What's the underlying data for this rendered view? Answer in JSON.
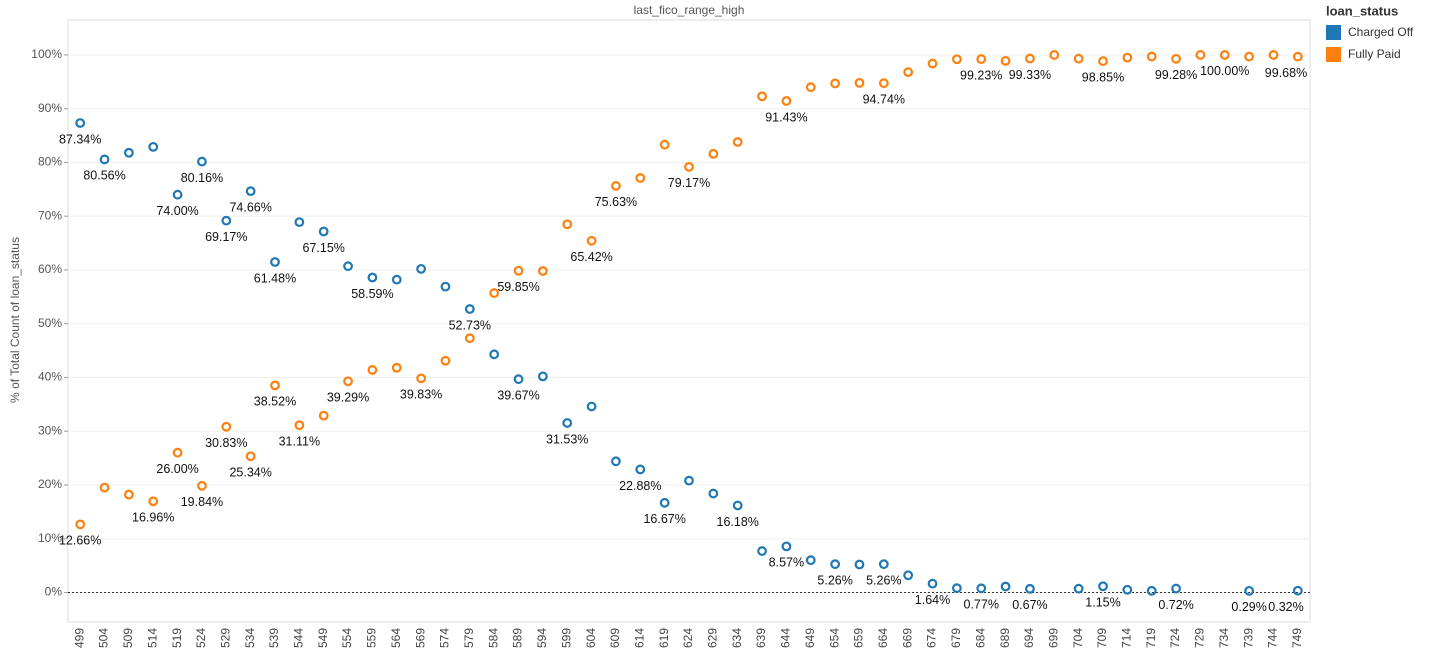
{
  "chart_data": {
    "type": "scatter",
    "title": "last_fico_range_high",
    "y_label": "% of Total Count of loan_status",
    "legend_title": "loan_status",
    "legend_position": "right",
    "grid": true,
    "zero_line": true,
    "categories": [
      "499",
      "504",
      "509",
      "514",
      "519",
      "524",
      "529",
      "534",
      "539",
      "544",
      "549",
      "554",
      "559",
      "564",
      "569",
      "574",
      "579",
      "584",
      "589",
      "594",
      "599",
      "604",
      "609",
      "614",
      "619",
      "624",
      "629",
      "634",
      "639",
      "644",
      "649",
      "654",
      "659",
      "664",
      "669",
      "674",
      "679",
      "684",
      "689",
      "694",
      "699",
      "704",
      "709",
      "714",
      "719",
      "724",
      "729",
      "734",
      "739",
      "744",
      "749"
    ],
    "ylim": [
      -5.5,
      106.5
    ],
    "yticks": [
      {
        "value": 0,
        "label": "0%"
      },
      {
        "value": 10,
        "label": "10%"
      },
      {
        "value": 20,
        "label": "20%"
      },
      {
        "value": 30,
        "label": "30%"
      },
      {
        "value": 40,
        "label": "40%"
      },
      {
        "value": 50,
        "label": "50%"
      },
      {
        "value": 60,
        "label": "60%"
      },
      {
        "value": 70,
        "label": "70%"
      },
      {
        "value": 80,
        "label": "80%"
      },
      {
        "value": 90,
        "label": "90%"
      },
      {
        "value": 100,
        "label": "100%"
      }
    ],
    "series": [
      {
        "name": "Charged Off",
        "color": "#1f77b4",
        "values": [
          87.34,
          80.56,
          81.8,
          82.9,
          74.0,
          80.16,
          69.17,
          74.66,
          61.48,
          68.9,
          67.15,
          60.7,
          58.59,
          58.2,
          60.2,
          56.9,
          52.73,
          44.3,
          39.67,
          40.2,
          31.53,
          34.6,
          24.4,
          22.88,
          16.67,
          20.8,
          18.4,
          16.18,
          7.7,
          8.57,
          6.0,
          5.26,
          5.2,
          5.26,
          3.2,
          1.64,
          0.8,
          0.77,
          1.1,
          0.67,
          null,
          0.7,
          1.15,
          0.5,
          0.3,
          0.72,
          null,
          null,
          0.29,
          null,
          0.32
        ],
        "value_labels": [
          "87.34%",
          "80.56%",
          null,
          null,
          "74.00%",
          "80.16%",
          "69.17%",
          "74.66%",
          "61.48%",
          null,
          "67.15%",
          null,
          "58.59%",
          null,
          null,
          null,
          "52.73%",
          null,
          "39.67%",
          null,
          "31.53%",
          null,
          null,
          "22.88%",
          "16.67%",
          null,
          null,
          "16.18%",
          null,
          "8.57%",
          null,
          "5.26%",
          null,
          "5.26%",
          null,
          "1.64%",
          null,
          "0.77%",
          null,
          "0.67%",
          null,
          null,
          "1.15%",
          null,
          null,
          "0.72%",
          null,
          null,
          "0.29%",
          null,
          "0.32%"
        ]
      },
      {
        "name": "Fully Paid",
        "color": "#ff7f0e",
        "values": [
          12.66,
          19.5,
          18.2,
          16.96,
          26.0,
          19.84,
          30.83,
          25.34,
          38.52,
          31.11,
          32.9,
          39.29,
          41.4,
          41.8,
          39.83,
          43.1,
          47.3,
          55.7,
          59.85,
          59.8,
          68.5,
          65.42,
          75.63,
          77.1,
          83.3,
          79.17,
          81.6,
          83.8,
          92.3,
          91.43,
          94.0,
          94.7,
          94.8,
          94.74,
          96.8,
          98.4,
          99.2,
          99.23,
          98.9,
          99.33,
          100.0,
          99.3,
          98.85,
          99.5,
          99.7,
          99.28,
          100.0,
          100.0,
          99.7,
          100.0,
          99.68
        ],
        "value_labels": [
          "12.66%",
          null,
          null,
          "16.96%",
          "26.00%",
          "19.84%",
          "30.83%",
          "25.34%",
          "38.52%",
          "31.11%",
          null,
          "39.29%",
          null,
          null,
          "39.83%",
          null,
          null,
          null,
          "59.85%",
          null,
          null,
          "65.42%",
          "75.63%",
          null,
          null,
          "79.17%",
          null,
          null,
          null,
          "91.43%",
          null,
          null,
          null,
          "94.74%",
          null,
          null,
          null,
          "99.23%",
          null,
          "99.33%",
          null,
          null,
          "98.85%",
          null,
          null,
          "99.28%",
          null,
          "100.00%",
          null,
          null,
          "99.68%"
        ]
      }
    ]
  }
}
